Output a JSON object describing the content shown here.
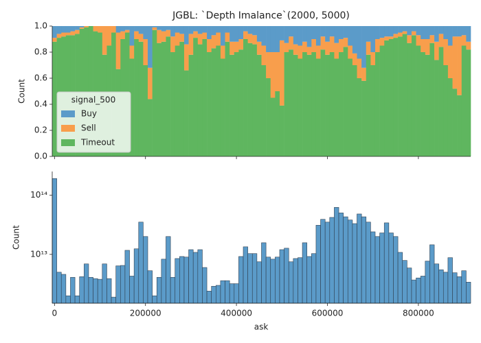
{
  "chart_data": [
    {
      "type": "histogram_fill",
      "title": "JGBL: `Depth Imalance`(2000, 5000)",
      "ylabel": "Count",
      "legend_title": "signal_500",
      "legend": "lower left",
      "bins": [
        -5000,
        5000,
        15000,
        25000,
        35000,
        45000,
        55000,
        65000,
        75000,
        85000,
        95000,
        105000,
        115000,
        125000,
        135000,
        145000,
        155000,
        165000,
        175000,
        185000,
        195000,
        205000,
        215000,
        225000,
        235000,
        245000,
        255000,
        265000,
        275000,
        285000,
        295000,
        305000,
        315000,
        325000,
        335000,
        345000,
        355000,
        365000,
        375000,
        385000,
        395000,
        405000,
        415000,
        425000,
        435000,
        445000,
        455000,
        465000,
        475000,
        485000,
        495000,
        505000,
        515000,
        525000,
        535000,
        545000,
        555000,
        565000,
        575000,
        585000,
        595000,
        605000,
        615000,
        625000,
        635000,
        645000,
        655000,
        665000,
        675000,
        685000,
        695000,
        705000,
        715000,
        725000,
        735000,
        745000,
        755000,
        765000,
        775000,
        785000,
        795000,
        805000,
        815000,
        825000,
        835000,
        845000,
        855000,
        865000,
        875000,
        885000,
        895000,
        905000,
        915000
      ],
      "series": [
        {
          "name": "Buy",
          "color": "#5b9bc9",
          "values": [
            0.09,
            0.06,
            0.05,
            0.05,
            0.04,
            0.03,
            0.01,
            0,
            0,
            0,
            0,
            0,
            0,
            0,
            0.05,
            0.04,
            0.03,
            0.15,
            0.04,
            0.06,
            0.1,
            0.32,
            0.01,
            0.03,
            0.04,
            0.03,
            0.08,
            0.05,
            0.06,
            0.14,
            0.06,
            0.04,
            0.06,
            0.05,
            0.1,
            0.07,
            0.05,
            0.15,
            0.05,
            0.12,
            0.12,
            0.1,
            0.04,
            0.06,
            0.07,
            0.12,
            0.15,
            0.2,
            0.2,
            0.2,
            0.11,
            0.13,
            0.08,
            0.14,
            0.15,
            0.12,
            0.16,
            0.1,
            0.15,
            0.08,
            0.12,
            0.08,
            0.13,
            0.1,
            0.09,
            0.15,
            0.21,
            0.25,
            0.32,
            0.12,
            0.2,
            0.1,
            0.09,
            0.08,
            0.08,
            0.06,
            0.05,
            0.04,
            0.07,
            0.04,
            0.07,
            0.1,
            0.1,
            0.07,
            0.12,
            0.06,
            0.1,
            0.15,
            0.08,
            0.08,
            0.07,
            0.12
          ]
        },
        {
          "name": "Sell",
          "color": "#f89e4c",
          "values": [
            0.03,
            0.03,
            0.03,
            0.02,
            0.03,
            0.03,
            0.01,
            0.01,
            0,
            0.04,
            0.05,
            0.22,
            0.15,
            0.05,
            0.28,
            0.06,
            0.02,
            0.1,
            0.06,
            0.06,
            0.2,
            0.24,
            0.02,
            0.1,
            0.08,
            0.05,
            0.12,
            0.1,
            0.06,
            0.2,
            0.16,
            0.05,
            0.08,
            0.05,
            0.1,
            0.1,
            0.1,
            0.1,
            0.07,
            0.1,
            0.08,
            0.08,
            0.06,
            0.07,
            0.07,
            0.1,
            0.15,
            0.2,
            0.35,
            0.3,
            0.5,
            0.07,
            0.1,
            0.08,
            0.1,
            0.08,
            0.06,
            0.1,
            0.1,
            0.1,
            0.1,
            0.12,
            0.12,
            0.1,
            0.07,
            0.1,
            0.09,
            0.15,
            0.1,
            0.1,
            0.1,
            0.1,
            0.06,
            0.03,
            0.02,
            0.03,
            0.03,
            0.02,
            0.06,
            0.03,
            0.08,
            0.1,
            0.12,
            0.06,
            0.14,
            0.1,
            0.2,
            0.25,
            0.4,
            0.45,
            0.08,
            0.06
          ]
        },
        {
          "name": "Timeout",
          "color": "#5fb65f",
          "values": [
            0.88,
            0.91,
            0.92,
            0.93,
            0.93,
            0.94,
            0.98,
            0.99,
            1,
            0.96,
            0.95,
            0.78,
            0.85,
            0.95,
            0.67,
            0.9,
            0.95,
            0.75,
            0.9,
            0.88,
            0.7,
            0.44,
            0.97,
            0.87,
            0.88,
            0.92,
            0.8,
            0.85,
            0.88,
            0.66,
            0.78,
            0.91,
            0.86,
            0.9,
            0.8,
            0.83,
            0.85,
            0.75,
            0.88,
            0.78,
            0.8,
            0.82,
            0.9,
            0.87,
            0.86,
            0.78,
            0.7,
            0.6,
            0.45,
            0.5,
            0.39,
            0.8,
            0.82,
            0.78,
            0.75,
            0.8,
            0.78,
            0.8,
            0.75,
            0.82,
            0.78,
            0.8,
            0.75,
            0.8,
            0.84,
            0.75,
            0.7,
            0.6,
            0.58,
            0.78,
            0.7,
            0.8,
            0.85,
            0.89,
            0.9,
            0.91,
            0.92,
            0.94,
            0.87,
            0.93,
            0.85,
            0.8,
            0.78,
            0.87,
            0.74,
            0.84,
            0.7,
            0.6,
            0.52,
            0.47,
            0.85,
            0.82
          ]
        }
      ],
      "xlim": [
        -5000,
        915000
      ],
      "xticks": [
        0,
        200000,
        400000,
        600000,
        800000
      ],
      "ylim": [
        0,
        1
      ],
      "yticks": [
        {
          "value": 0,
          "label": "0.0"
        },
        0.2,
        0.4,
        0.6,
        0.8,
        {
          "value": 1,
          "label": "1.0"
        }
      ]
    },
    {
      "type": "histogram",
      "xlabel": "ask",
      "ylabel": "Count",
      "yscale": "log",
      "color": "#5b9bc9",
      "bins": [
        -5000,
        5000,
        15000,
        25000,
        35000,
        45000,
        55000,
        65000,
        75000,
        85000,
        95000,
        105000,
        115000,
        125000,
        135000,
        145000,
        155000,
        165000,
        175000,
        185000,
        195000,
        205000,
        215000,
        225000,
        235000,
        245000,
        255000,
        265000,
        275000,
        285000,
        295000,
        305000,
        315000,
        325000,
        335000,
        345000,
        355000,
        365000,
        375000,
        385000,
        395000,
        405000,
        415000,
        425000,
        435000,
        445000,
        455000,
        465000,
        475000,
        485000,
        495000,
        505000,
        515000,
        525000,
        535000,
        545000,
        555000,
        565000,
        575000,
        585000,
        595000,
        605000,
        615000,
        625000,
        635000,
        645000,
        655000,
        665000,
        675000,
        685000,
        695000,
        705000,
        715000,
        725000,
        735000,
        745000,
        755000,
        765000,
        775000,
        785000,
        795000,
        805000,
        815000,
        825000,
        835000,
        845000,
        855000,
        865000,
        875000,
        885000,
        895000,
        905000,
        915000
      ],
      "values": [
        190000000000000.0,
        5000000000000.0,
        4600000000000.0,
        2000000000000.0,
        4100000000000.0,
        2000000000000.0,
        4200000000000.0,
        6900000000000.0,
        4100000000000.0,
        3900000000000.0,
        3800000000000.0,
        6900000000000.0,
        3900000000000.0,
        1900000000000.0,
        6400000000000.0,
        6500000000000.0,
        11700000000000.0,
        4300000000000.0,
        12400000000000.0,
        35000000000000.0,
        20000000000000.0,
        5300000000000.0,
        2000000000000.0,
        4100000000000.0,
        8300000000000.0,
        20000000000000.0,
        4100000000000.0,
        8500000000000.0,
        9200000000000.0,
        9000000000000.0,
        12000000000000.0,
        10800000000000.0,
        12000000000000.0,
        6000000000000.0,
        2400000000000.0,
        2900000000000.0,
        3000000000000.0,
        3600000000000.0,
        3600000000000.0,
        3200000000000.0,
        3200000000000.0,
        9200000000000.0,
        13400000000000.0,
        10300000000000.0,
        10300000000000.0,
        7500000000000.0,
        15700000000000.0,
        9000000000000.0,
        8300000000000.0,
        9000000000000.0,
        12000000000000.0,
        12700000000000.0,
        7500000000000.0,
        8500000000000.0,
        8800000000000.0,
        15700000000000.0,
        9200000000000.0,
        10300000000000.0,
        31000000000000.0,
        39000000000000.0,
        35000000000000.0,
        42000000000000.0,
        62000000000000.0,
        50000000000000.0,
        43000000000000.0,
        38000000000000.0,
        33000000000000.0,
        48000000000000.0,
        43000000000000.0,
        35000000000000.0,
        24000000000000.0,
        20000000000000.0,
        23000000000000.0,
        34000000000000.0,
        23000000000000.0,
        20000000000000.0,
        10800000000000.0,
        7900000000000.0,
        5900000000000.0,
        3700000000000.0,
        4000000000000.0,
        4300000000000.0,
        7700000000000.0,
        14500000000000.0,
        6900000000000.0,
        5500000000000.0,
        5000000000000.0,
        8800000000000.0,
        4900000000000.0,
        4200000000000.0,
        5300000000000.0,
        3400000000000.0
      ],
      "xlim": [
        -5000,
        915000
      ],
      "xticks": [
        0,
        200000,
        400000,
        600000,
        800000
      ],
      "ylim": [
        1500000000000.0,
        250000000000000.0
      ],
      "yticks": [
        {
          "value": 10000000000000.0,
          "label": "10¹³"
        },
        {
          "value": 100000000000000.0,
          "label": "10¹⁴"
        }
      ]
    }
  ]
}
